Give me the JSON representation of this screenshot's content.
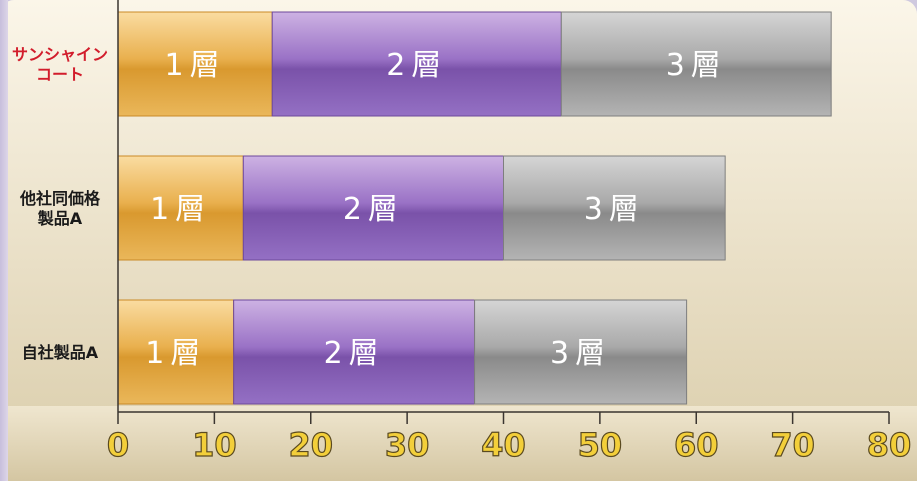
{
  "chart_data": {
    "type": "bar",
    "orientation": "horizontal",
    "stacked": true,
    "categories": [
      "サンシャインコート",
      "他社同価格製品A",
      "自社製品A"
    ],
    "category_label_lines": [
      [
        "サンシャイン",
        "コート"
      ],
      [
        "他社同価格",
        "製品A"
      ],
      [
        "自社製品A"
      ]
    ],
    "series": [
      {
        "name": "1層",
        "values": [
          16,
          13,
          12
        ],
        "color": "#e9b04e"
      },
      {
        "name": "2層",
        "values": [
          30,
          27,
          25
        ],
        "color": "#8c63b9"
      },
      {
        "name": "3層",
        "values": [
          28,
          23,
          22
        ],
        "color": "#a9a9a9"
      }
    ],
    "segment_labels": [
      "1層",
      "2層",
      "3層"
    ],
    "xlim": [
      0,
      80
    ],
    "x_ticks": [
      "0",
      "10",
      "20",
      "30",
      "40",
      "50",
      "60",
      "70",
      "80"
    ],
    "highlight_category_color": "#d21d2c",
    "category_label_color": "#1a1a1a",
    "tick_label_color": "#f3cf3a",
    "grid": false
  }
}
